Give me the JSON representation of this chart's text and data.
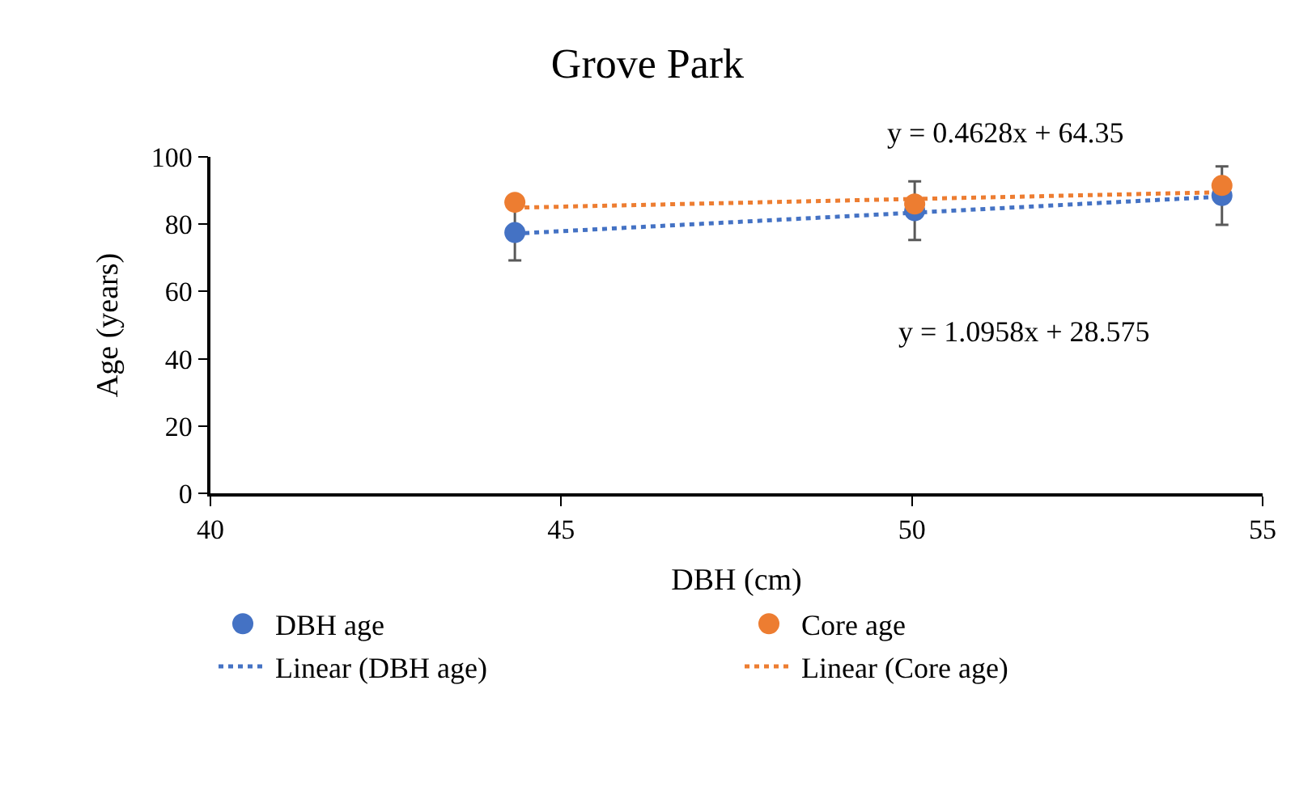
{
  "chart_data": {
    "type": "scatter",
    "title": "Grove Park",
    "xlabel": "DBH (cm)",
    "ylabel": "Age (years)",
    "xlim": [
      40,
      55
    ],
    "xticks": [
      40,
      45,
      50,
      55
    ],
    "ylim": [
      0,
      100
    ],
    "yticks": [
      0,
      20,
      40,
      60,
      80,
      100
    ],
    "legend": "bottom",
    "series": [
      {
        "name": "DBH age",
        "color": "#4472c4",
        "x": [
          44.34,
          50.04,
          54.42
        ],
        "values": [
          77.5,
          84,
          88.5
        ],
        "marker": "circle",
        "errors": [
          8.3,
          8.7,
          8.7
        ]
      },
      {
        "name": "Core age",
        "color": "#ed7d31",
        "x": [
          44.34,
          50.04,
          54.42
        ],
        "values": [
          86.5,
          86,
          91.5
        ],
        "marker": "circle"
      },
      {
        "name": "Linear (DBH age)",
        "type": "line",
        "line_style": "dotted",
        "color": "#4472c4",
        "x": [
          44.34,
          54.42
        ],
        "values": [
          77.2,
          88.2
        ]
      },
      {
        "name": "Linear (Core age)",
        "type": "line",
        "line_style": "dotted",
        "color": "#ed7d31",
        "x": [
          44.34,
          54.42
        ],
        "values": [
          84.9,
          89.5
        ]
      }
    ],
    "annotations": [
      "y = 0.4628x + 64.35",
      "y = 1.0958x + 28.575"
    ]
  }
}
